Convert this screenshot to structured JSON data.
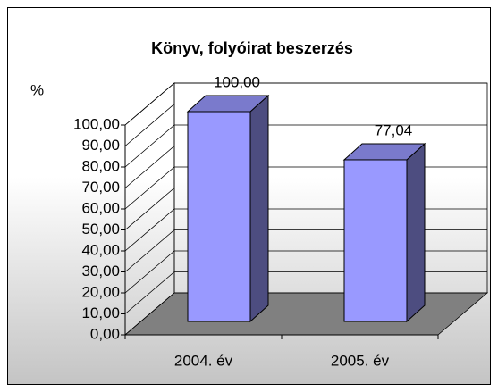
{
  "chart_data": {
    "type": "bar3d",
    "title": "Könyv, folyóirat beszerzés",
    "y_label": "%",
    "categories": [
      "2004. év",
      "2005. év"
    ],
    "values": [
      100,
      77.04
    ],
    "value_labels": [
      "100,00",
      "77,04"
    ],
    "color": "#9999ff",
    "ylim": [
      0,
      100
    ],
    "yticks": [
      {
        "value": 0,
        "label": "0,00"
      },
      {
        "value": 10,
        "label": "10,00"
      },
      {
        "value": 20,
        "label": "20,00"
      },
      {
        "value": 30,
        "label": "30,00"
      },
      {
        "value": 40,
        "label": "40,00"
      },
      {
        "value": 50,
        "label": "50,00"
      },
      {
        "value": 60,
        "label": "60,00"
      },
      {
        "value": 70,
        "label": "70,00"
      },
      {
        "value": 80,
        "label": "80,00"
      },
      {
        "value": 90,
        "label": "90,00"
      },
      {
        "value": 100,
        "label": "100,00"
      }
    ],
    "grid": true
  }
}
